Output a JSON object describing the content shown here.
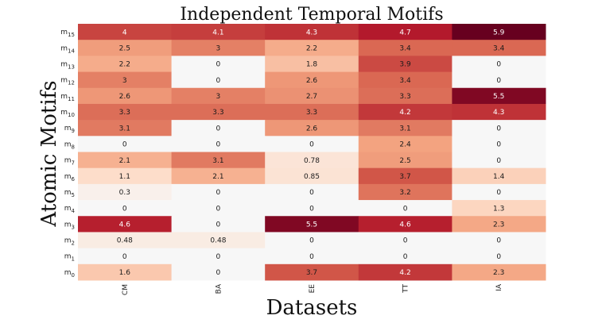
{
  "chart_data": {
    "type": "heatmap",
    "title": "Independent Temporal Motifs",
    "xlabel": "Datasets",
    "ylabel": "Atomic Motifs",
    "columns": [
      "CM",
      "BA",
      "EE",
      "TT",
      "IA"
    ],
    "rows": [
      {
        "base": "m",
        "sub": "15"
      },
      {
        "base": "m",
        "sub": "14"
      },
      {
        "base": "m",
        "sub": "13"
      },
      {
        "base": "m",
        "sub": "12"
      },
      {
        "base": "m",
        "sub": "11"
      },
      {
        "base": "m",
        "sub": "10"
      },
      {
        "base": "m",
        "sub": "9"
      },
      {
        "base": "m",
        "sub": "8"
      },
      {
        "base": "m",
        "sub": "7"
      },
      {
        "base": "m",
        "sub": "6"
      },
      {
        "base": "m",
        "sub": "5"
      },
      {
        "base": "m",
        "sub": "4"
      },
      {
        "base": "m",
        "sub": "3"
      },
      {
        "base": "m",
        "sub": "2"
      },
      {
        "base": "m",
        "sub": "1"
      },
      {
        "base": "m",
        "sub": "0"
      }
    ],
    "values": [
      [
        4,
        4.1,
        4.3,
        4.7,
        5.9
      ],
      [
        2.5,
        3,
        2.2,
        3.4,
        3.4
      ],
      [
        2.2,
        0,
        1.8,
        3.9,
        0
      ],
      [
        3,
        0,
        2.6,
        3.4,
        0
      ],
      [
        2.6,
        3,
        2.7,
        3.3,
        5.5
      ],
      [
        3.3,
        3.3,
        3.3,
        4.2,
        4.3
      ],
      [
        3.1,
        0,
        2.6,
        3.1,
        0
      ],
      [
        0,
        0,
        0,
        2.4,
        0
      ],
      [
        2.1,
        3.1,
        0.78,
        2.5,
        0
      ],
      [
        1.1,
        2.1,
        0.85,
        3.7,
        1.4
      ],
      [
        0.3,
        0,
        0,
        3.2,
        0
      ],
      [
        0,
        0,
        0,
        0,
        1.3
      ],
      [
        4.6,
        0,
        5.5,
        4.6,
        2.3
      ],
      [
        0.48,
        0.48,
        0,
        0,
        0
      ],
      [
        0,
        0,
        0,
        0,
        0
      ],
      [
        1.6,
        0,
        3.7,
        4.2,
        2.3
      ]
    ],
    "labels": [
      [
        "4",
        "4.1",
        "4.3",
        "4.7",
        "5.9"
      ],
      [
        "2.5",
        "3",
        "2.2",
        "3.4",
        "3.4"
      ],
      [
        "2.2",
        "0",
        "1.8",
        "3.9",
        "0"
      ],
      [
        "3",
        "0",
        "2.6",
        "3.4",
        "0"
      ],
      [
        "2.6",
        "3",
        "2.7",
        "3.3",
        "5.5"
      ],
      [
        "3.3",
        "3.3",
        "3.3",
        "4.2",
        "4.3"
      ],
      [
        "3.1",
        "0",
        "2.6",
        "3.1",
        "0"
      ],
      [
        "0",
        "0",
        "0",
        "2.4",
        "0"
      ],
      [
        "2.1",
        "3.1",
        "0.78",
        "2.5",
        "0"
      ],
      [
        "1.1",
        "2.1",
        "0.85",
        "3.7",
        "1.4"
      ],
      [
        "0.3",
        "0",
        "0",
        "3.2",
        "0"
      ],
      [
        "0",
        "0",
        "0",
        "0",
        "1.3"
      ],
      [
        "4.6",
        "0",
        "5.5",
        "4.6",
        "2.3"
      ],
      [
        "0.48",
        "0.48",
        "0",
        "0",
        "0"
      ],
      [
        "0",
        "0",
        "0",
        "0",
        "0"
      ],
      [
        "1.6",
        "0",
        "3.7",
        "4.2",
        "2.3"
      ]
    ],
    "value_range": [
      0,
      5.9
    ],
    "colormap": [
      "#f7f7f7",
      "#fddbc7",
      "#f4a582",
      "#d6604d",
      "#b2182b",
      "#67001f"
    ],
    "legend": "none"
  }
}
